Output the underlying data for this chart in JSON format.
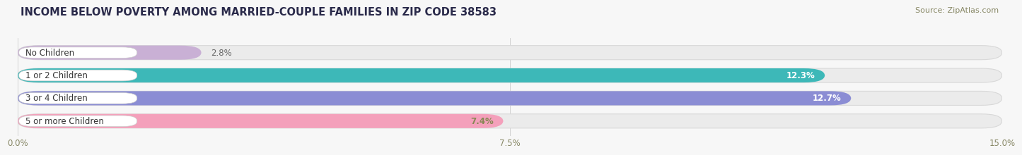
{
  "title": "INCOME BELOW POVERTY AMONG MARRIED-COUPLE FAMILIES IN ZIP CODE 38583",
  "source": "Source: ZipAtlas.com",
  "categories": [
    "No Children",
    "1 or 2 Children",
    "3 or 4 Children",
    "5 or more Children"
  ],
  "values": [
    2.8,
    12.3,
    12.7,
    7.4
  ],
  "bar_colors": [
    "#c9b0d5",
    "#3db8b8",
    "#8b8dd4",
    "#f4a0bb"
  ],
  "value_label_colors": [
    "#666666",
    "#ffffff",
    "#ffffff",
    "#888855"
  ],
  "xlim": [
    0,
    15.0
  ],
  "xticks": [
    0.0,
    7.5,
    15.0
  ],
  "xticklabels": [
    "0.0%",
    "7.5%",
    "15.0%"
  ],
  "title_fontsize": 10.5,
  "source_fontsize": 8,
  "bar_label_fontsize": 8.5,
  "category_fontsize": 8.5,
  "bar_height": 0.62,
  "background_color": "#f7f7f7",
  "bar_bg_color": "#f7f7f7",
  "pill_bg_color": "#ebebeb",
  "label_pill_color": "#ffffff",
  "label_pill_border": "#dddddd"
}
